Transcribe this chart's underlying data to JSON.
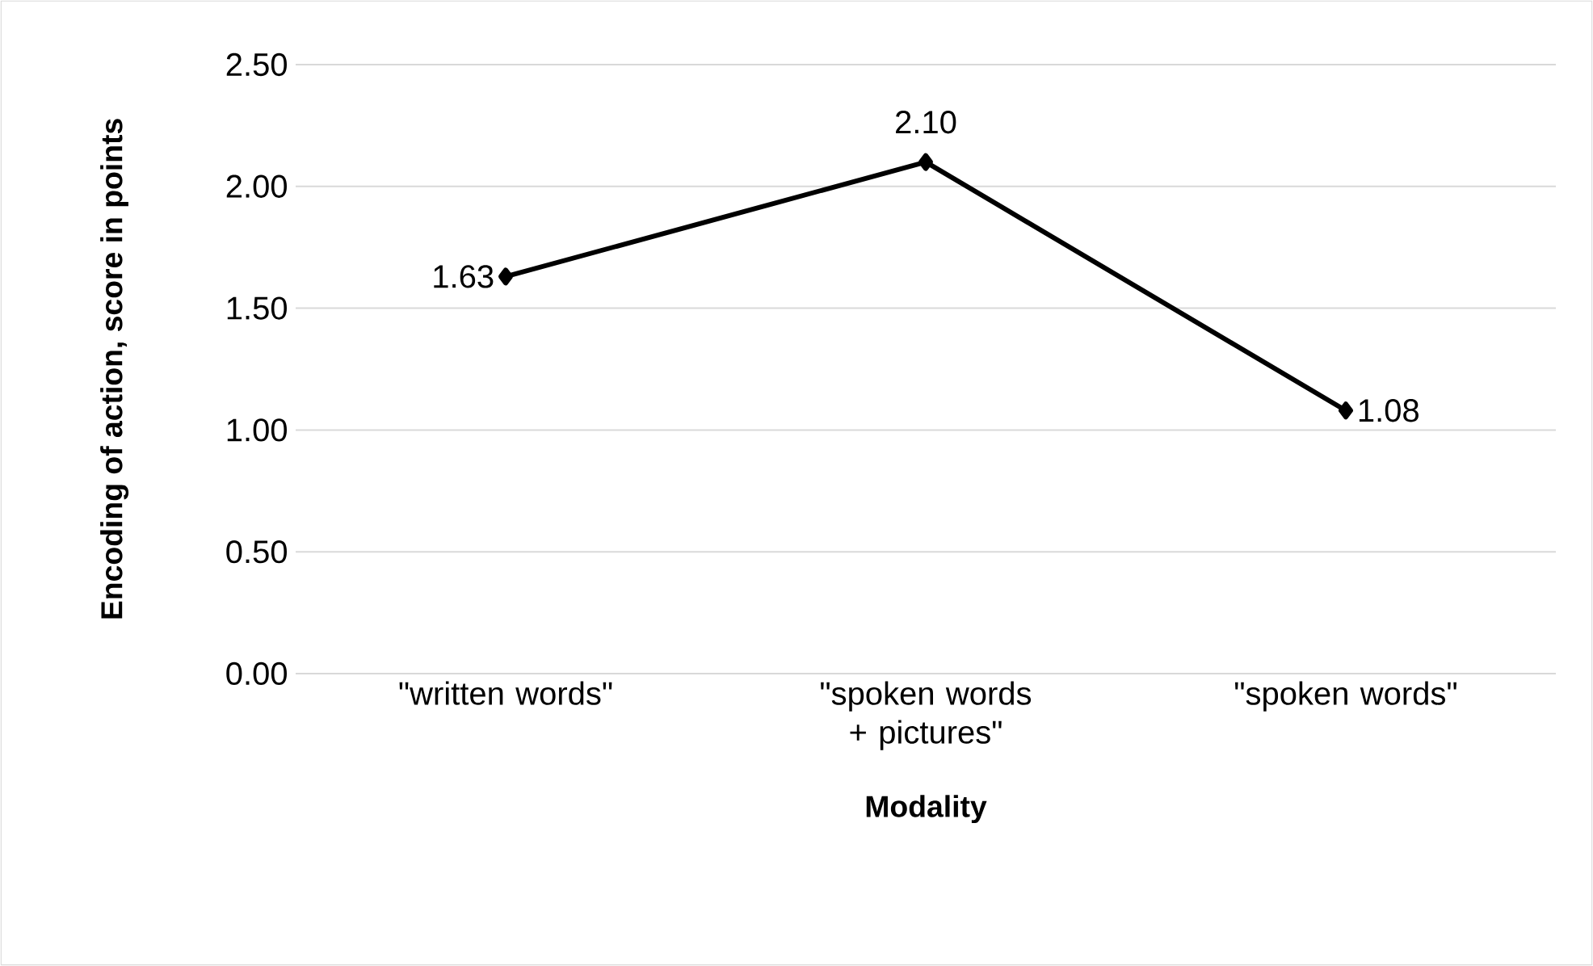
{
  "chart_data": {
    "type": "line",
    "xlabel": "Modality",
    "ylabel": "Encoding of action, score in points",
    "categories": [
      "\"written words\"",
      "\"spoken words + pictures\"",
      "\"spoken words\""
    ],
    "values": [
      1.63,
      2.1,
      1.08
    ],
    "value_labels": [
      "1.63",
      "2.10",
      "1.08"
    ],
    "color": "#000000",
    "marker": "diamond",
    "line_style": "solid",
    "ylim": [
      0,
      2.5
    ],
    "yticks": [
      {
        "value": 0,
        "label": "0.00"
      },
      {
        "value": 0.5,
        "label": "0.50"
      },
      {
        "value": 1,
        "label": "1.00"
      },
      {
        "value": 1.5,
        "label": "1.50"
      },
      {
        "value": 2,
        "label": "2.00"
      },
      {
        "value": 2.5,
        "label": "2.50"
      }
    ],
    "grid": "y"
  }
}
